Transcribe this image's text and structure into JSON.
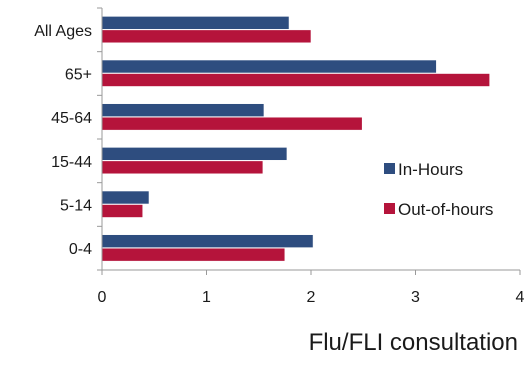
{
  "chart_data": {
    "type": "bar",
    "orientation": "horizontal",
    "categories": [
      "All Ages",
      "65+",
      "45-64",
      "15-44",
      "5-14",
      "0-4"
    ],
    "series": [
      {
        "name": "In-Hours",
        "color": "#2e4d7f",
        "values": [
          1.79,
          3.2,
          1.55,
          1.77,
          0.45,
          2.02
        ]
      },
      {
        "name": "Out-of-hours",
        "color": "#b5143b",
        "values": [
          2.0,
          3.71,
          2.49,
          1.54,
          0.39,
          1.75
        ]
      }
    ],
    "xlim": [
      0,
      4
    ],
    "xticks": [
      "0",
      "1",
      "2",
      "3",
      "4"
    ],
    "xlabel": "Flu/FLI consultation",
    "ylabel": "",
    "grid": false,
    "legend_position": "right"
  }
}
